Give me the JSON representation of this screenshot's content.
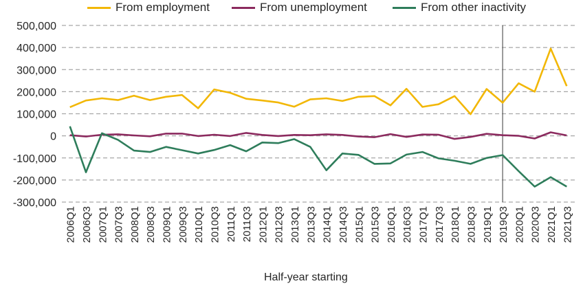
{
  "chart_data": {
    "type": "line",
    "xlabel": "Half-year starting",
    "ylabel": "",
    "ylim": [
      -300000,
      500000
    ],
    "yticks": [
      -300000,
      -200000,
      -100000,
      0,
      100000,
      200000,
      300000,
      400000,
      500000
    ],
    "ytick_labels": [
      "-300,000",
      "-200,000",
      "-100,000",
      "0",
      "100,000",
      "200,000",
      "300,000",
      "400,000",
      "500,000"
    ],
    "grid": "horizontal dashed",
    "legend": "top",
    "reference_line_at": "2019Q3",
    "categories": [
      "2006Q1",
      "2006Q3",
      "2007Q1",
      "2007Q3",
      "2008Q1",
      "2008Q3",
      "2009Q1",
      "2009Q3",
      "2010Q1",
      "2010Q3",
      "2011Q1",
      "2011Q3",
      "2012Q1",
      "2012Q3",
      "2013Q1",
      "2013Q3",
      "2014Q1",
      "2014Q3",
      "2015Q1",
      "2015Q3",
      "2016Q1",
      "2016Q3",
      "2017Q1",
      "2017Q3",
      "2018Q1",
      "2018Q3",
      "2019Q1",
      "2019Q3",
      "2020Q1",
      "2020Q3",
      "2021Q1",
      "2021Q3"
    ],
    "series": [
      {
        "name": "From employment",
        "color": "#F2B705",
        "values": [
          130000,
          160000,
          170000,
          162000,
          182000,
          162000,
          177000,
          185000,
          125000,
          210000,
          195000,
          168000,
          160000,
          151000,
          132000,
          165000,
          170000,
          158000,
          177000,
          180000,
          138000,
          213000,
          131000,
          143000,
          180000,
          98000,
          212000,
          150000,
          238000,
          200000,
          395000,
          225000
        ]
      },
      {
        "name": "From unemployment",
        "color": "#8B2A5E",
        "values": [
          3000,
          -3000,
          5000,
          7000,
          2000,
          -2000,
          10000,
          10000,
          -1000,
          5000,
          -1000,
          13000,
          4000,
          -1000,
          4000,
          3000,
          7000,
          4000,
          -3000,
          -6000,
          8000,
          -5000,
          6000,
          5000,
          -14000,
          -5000,
          9000,
          3000,
          0,
          -12000,
          16000,
          2000
        ]
      },
      {
        "name": "From other inactivity",
        "color": "#2E7D5B",
        "values": [
          43000,
          -165000,
          12000,
          -18000,
          -67000,
          -73000,
          -50000,
          -65000,
          -80000,
          -64000,
          -42000,
          -70000,
          -30000,
          -33000,
          -15000,
          -50000,
          -156000,
          -80000,
          -86000,
          -127000,
          -125000,
          -85000,
          -73000,
          -102000,
          -113000,
          -127000,
          -100000,
          -87000,
          -160000,
          -230000,
          -187000,
          -230000
        ]
      }
    ]
  }
}
